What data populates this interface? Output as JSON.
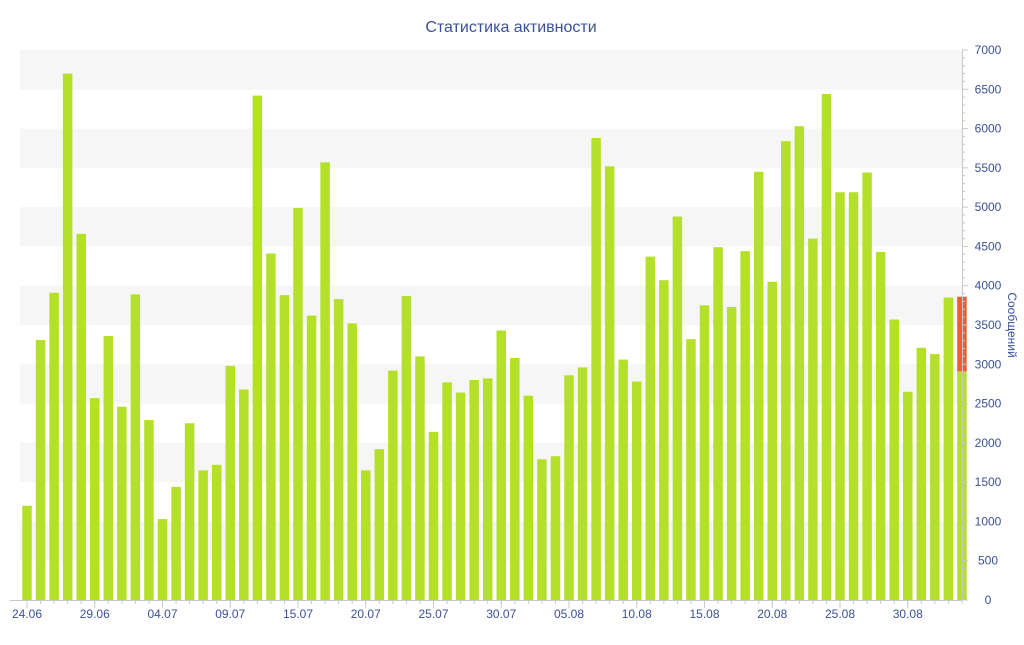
{
  "colors": {
    "bar": "#b5e02a",
    "bar_highlight": "#e8622f",
    "title": "#3a5196",
    "axis": "#3a5196",
    "band": "#f6f6f6",
    "axis_line": "#c8c8c8"
  },
  "chart_data": {
    "type": "bar",
    "title": "Статистика активности",
    "xlabel": "",
    "ylabel": "Сообщений",
    "ylim": [
      0,
      7000
    ],
    "y_ticks": [
      0,
      500,
      1000,
      1500,
      2000,
      2500,
      3000,
      3500,
      4000,
      4500,
      5000,
      5500,
      6000,
      6500,
      7000
    ],
    "x_tick_labels": [
      "24.06",
      "29.06",
      "04.07",
      "09.07",
      "15.07",
      "20.07",
      "25.07",
      "30.07",
      "05.08",
      "10.08",
      "15.08",
      "20.08",
      "25.08",
      "30.08"
    ],
    "x_tick_label_bar_index": [
      0,
      5,
      10,
      15,
      20,
      25,
      30,
      35,
      40,
      45,
      50,
      55,
      60,
      65
    ],
    "bands": "alternating light grey horizontal bands every 500",
    "values": [
      1200,
      3310,
      3910,
      6700,
      4660,
      2570,
      3360,
      2460,
      3890,
      2290,
      1030,
      1440,
      2250,
      1650,
      1720,
      2980,
      2680,
      6420,
      4410,
      3880,
      4990,
      3620,
      5570,
      3830,
      3520,
      1650,
      1920,
      2920,
      3870,
      3100,
      2140,
      2770,
      2640,
      2800,
      2820,
      3430,
      3080,
      2600,
      1790,
      1830,
      2860,
      2960,
      5880,
      5520,
      3060,
      2780,
      4370,
      4070,
      4880,
      3320,
      3750,
      4490,
      3730,
      4440,
      5450,
      4050,
      5840,
      6030,
      4600,
      6440,
      5190,
      5190,
      5440,
      4430,
      3570,
      2650,
      3210,
      3130,
      3850,
      3860
    ],
    "last_bar_split": {
      "base": 2910,
      "highlight": 950
    }
  }
}
